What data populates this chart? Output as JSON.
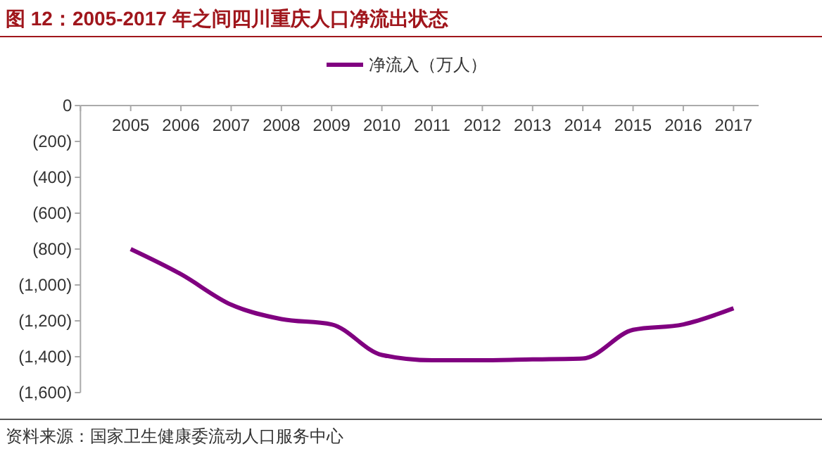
{
  "chart_data": {
    "type": "line",
    "title": "图 12：2005-2017 年之间四川重庆人口净流出状态",
    "categories": [
      "2005",
      "2006",
      "2007",
      "2008",
      "2009",
      "2010",
      "2011",
      "2012",
      "2013",
      "2014",
      "2015",
      "2016",
      "2017"
    ],
    "series": [
      {
        "name": "净流入（万人）",
        "color": "#800080",
        "values": [
          -800,
          -940,
          -1110,
          -1190,
          -1220,
          -1390,
          -1420,
          -1420,
          -1415,
          -1410,
          -1250,
          -1220,
          -1130
        ]
      }
    ],
    "ylim": [
      -1600,
      0
    ],
    "yticks": [
      0,
      {
        "value": -200,
        "label": "(200)"
      },
      {
        "value": -400,
        "label": "(400)"
      },
      {
        "value": -600,
        "label": "(600)"
      },
      {
        "value": -800,
        "label": "(800)"
      },
      {
        "value": -1000,
        "label": "(1,000)"
      },
      {
        "value": -1200,
        "label": "(1,200)"
      },
      {
        "value": -1400,
        "label": "(1,400)"
      },
      {
        "value": -1600,
        "label": "(1,600)"
      }
    ],
    "legend": "top",
    "grid": false,
    "marker": "none",
    "line_style": "solid",
    "annotations": [
      "资料来源：国家卫生健康委流动人口服务中心"
    ]
  }
}
